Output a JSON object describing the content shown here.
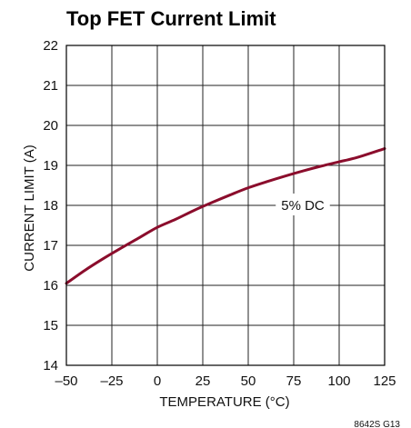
{
  "chart_data": {
    "type": "line",
    "title": "Top FET Current Limit",
    "xlabel": "TEMPERATURE (°C)",
    "ylabel": "CURRENT LIMIT (A)",
    "xlim": [
      -50,
      125
    ],
    "ylim": [
      14,
      22
    ],
    "xticks": [
      -50,
      -25,
      0,
      25,
      50,
      75,
      100,
      125
    ],
    "yticks": [
      14,
      15,
      16,
      17,
      18,
      19,
      20,
      21,
      22
    ],
    "xtick_labels": [
      "–50",
      "–25",
      "0",
      "25",
      "50",
      "75",
      "100",
      "125"
    ],
    "ytick_labels": [
      "14",
      "15",
      "16",
      "17",
      "18",
      "19",
      "20",
      "21",
      "22"
    ],
    "grid": true,
    "series": [
      {
        "name": "5% DC",
        "color": "#8b0d2c",
        "x": [
          -50,
          -40,
          -30,
          -20,
          -10,
          0,
          10,
          20,
          30,
          40,
          50,
          60,
          70,
          80,
          90,
          100,
          110,
          125
        ],
        "y": [
          16.05,
          16.37,
          16.66,
          16.93,
          17.19,
          17.45,
          17.65,
          17.87,
          18.07,
          18.26,
          18.44,
          18.59,
          18.73,
          18.86,
          18.98,
          19.09,
          19.2,
          19.42
        ]
      }
    ],
    "annotations": [
      {
        "text": "5% DC",
        "x": 80,
        "y": 18
      }
    ],
    "footnote": "8642S G13"
  }
}
